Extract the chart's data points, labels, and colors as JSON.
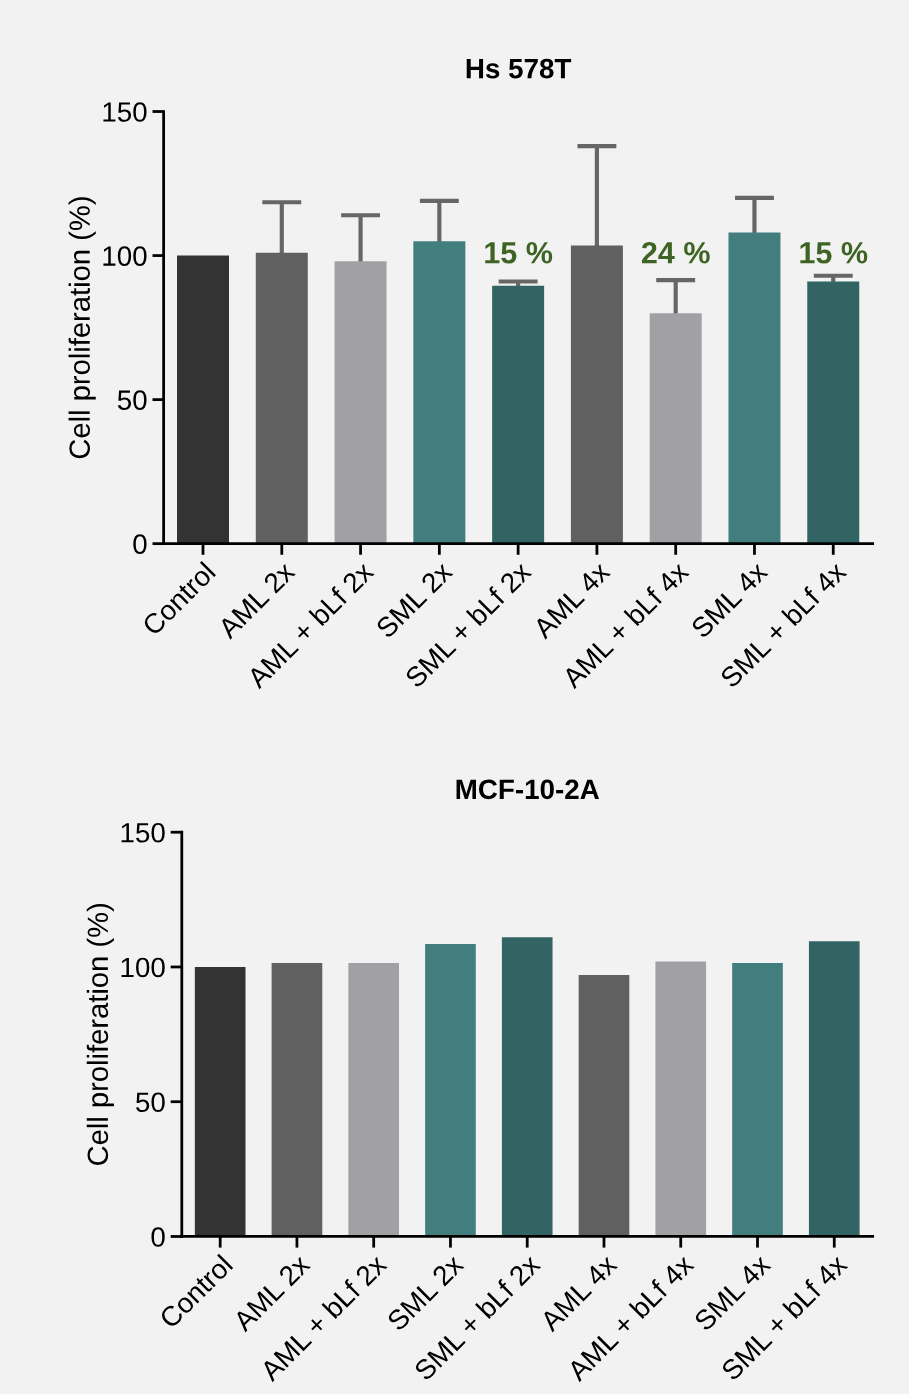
{
  "chart_data": [
    {
      "type": "bar",
      "title": "Hs 578T",
      "ylabel": "Cell proliferation (%)",
      "categories": [
        "Control",
        "AML 2x",
        "AML + bLf 2x",
        "SML 2x",
        "SML + bLf 2x",
        "AML 4x",
        "AML + bLf 4x",
        "SML 4x",
        "SML + bLf 4x"
      ],
      "values": [
        100,
        101,
        98,
        105,
        89.5,
        103.5,
        80,
        108,
        91
      ],
      "errors": [
        null,
        17.5,
        16,
        14,
        1.5,
        34.5,
        11.5,
        12,
        2
      ],
      "colors": [
        "#333333",
        "#606060",
        "#a1a0a4",
        "#427e7d",
        "#326464",
        "#606060",
        "#a1a0a4",
        "#427e7d",
        "#326464"
      ],
      "ylim": [
        0,
        150
      ],
      "yticks": [
        0,
        50,
        100,
        150
      ],
      "grid": false,
      "annotations": [
        "15 %",
        "24 %",
        "15 %"
      ]
    },
    {
      "type": "bar",
      "title": "MCF-10-2A",
      "ylabel": "Cell proliferation (%)",
      "categories": [
        "Control",
        "AML 2x",
        "AML + bLf 2x",
        "SML 2x",
        "SML + bLf 2x",
        "AML 4x",
        "AML + bLf 4x",
        "SML 4x",
        "SML + bLf 4x"
      ],
      "values": [
        100,
        101.5,
        101.5,
        108.5,
        111,
        97,
        102,
        101.5,
        109.5
      ],
      "colors": [
        "#333333",
        "#606060",
        "#a1a0a4",
        "#427e7d",
        "#326464",
        "#606060",
        "#a1a0a4",
        "#427e7d",
        "#326464"
      ],
      "ylim": [
        0,
        150
      ],
      "yticks": [
        0,
        50,
        100,
        150
      ],
      "grid": false
    }
  ]
}
